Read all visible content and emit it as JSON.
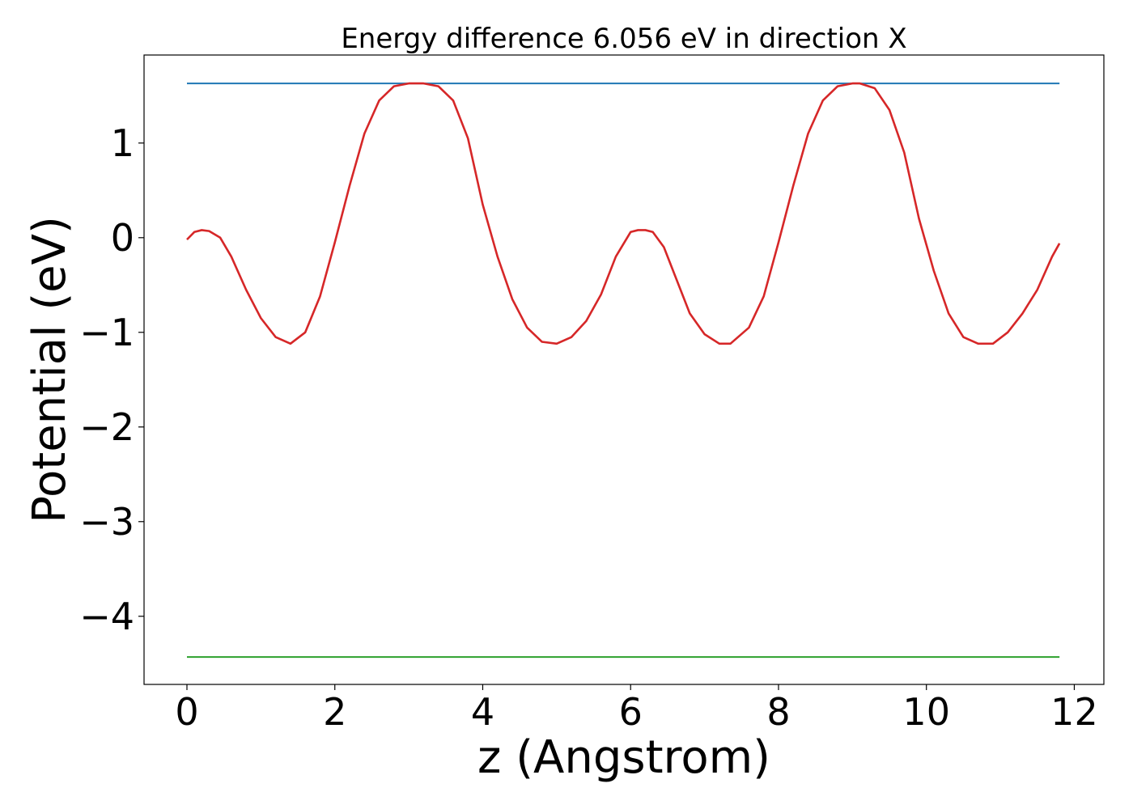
{
  "chart_data": {
    "type": "line",
    "title": "Energy difference 6.056 eV in direction X",
    "xlabel": "z (Angstrom)",
    "ylabel": "Potential (eV)",
    "xlim": [
      -0.58,
      12.4
    ],
    "ylim": [
      -4.72,
      1.93
    ],
    "xticks": [
      0,
      2,
      4,
      6,
      8,
      10,
      12
    ],
    "xtick_labels": [
      "0",
      "2",
      "4",
      "6",
      "8",
      "10",
      "12"
    ],
    "yticks": [
      1,
      0,
      -1,
      -2,
      -3,
      -4
    ],
    "ytick_labels": [
      "1",
      "0",
      "−1",
      "−2",
      "−3",
      "−4"
    ],
    "grid": false,
    "legend": "none",
    "series": [
      {
        "color": "#1f77b4",
        "x": [
          0,
          11.8
        ],
        "y": [
          1.63,
          1.63
        ]
      },
      {
        "color": "#2ca02c",
        "x": [
          0,
          11.8
        ],
        "y": [
          -4.43,
          -4.43
        ]
      },
      {
        "color": "#d62728",
        "x": [
          0,
          0.1,
          0.2,
          0.3,
          0.45,
          0.6,
          0.8,
          1.0,
          1.2,
          1.4,
          1.6,
          1.8,
          2.0,
          2.2,
          2.4,
          2.6,
          2.8,
          3.0,
          3.2,
          3.4,
          3.6,
          3.8,
          4.0,
          4.2,
          4.4,
          4.6,
          4.8,
          5.0,
          5.2,
          5.4,
          5.6,
          5.8,
          6.0,
          6.1,
          6.2,
          6.3,
          6.45,
          6.6,
          6.8,
          7.0,
          7.2,
          7.35,
          7.6,
          7.8,
          8.0,
          8.2,
          8.4,
          8.6,
          8.8,
          9.0,
          9.1,
          9.3,
          9.5,
          9.7,
          9.9,
          10.1,
          10.3,
          10.5,
          10.7,
          10.9,
          11.1,
          11.3,
          11.5,
          11.7,
          11.8
        ],
        "y": [
          -0.02,
          0.06,
          0.08,
          0.07,
          0.0,
          -0.2,
          -0.55,
          -0.85,
          -1.05,
          -1.12,
          -1.0,
          -0.62,
          -0.05,
          0.55,
          1.1,
          1.45,
          1.6,
          1.63,
          1.63,
          1.6,
          1.45,
          1.05,
          0.35,
          -0.2,
          -0.65,
          -0.95,
          -1.1,
          -1.12,
          -1.05,
          -0.88,
          -0.6,
          -0.2,
          0.06,
          0.08,
          0.08,
          0.06,
          -0.1,
          -0.4,
          -0.8,
          -1.02,
          -1.12,
          -1.12,
          -0.95,
          -0.62,
          -0.05,
          0.55,
          1.1,
          1.45,
          1.6,
          1.63,
          1.63,
          1.58,
          1.35,
          0.9,
          0.2,
          -0.35,
          -0.8,
          -1.05,
          -1.12,
          -1.12,
          -1.0,
          -0.8,
          -0.55,
          -0.2,
          -0.06
        ]
      }
    ]
  }
}
